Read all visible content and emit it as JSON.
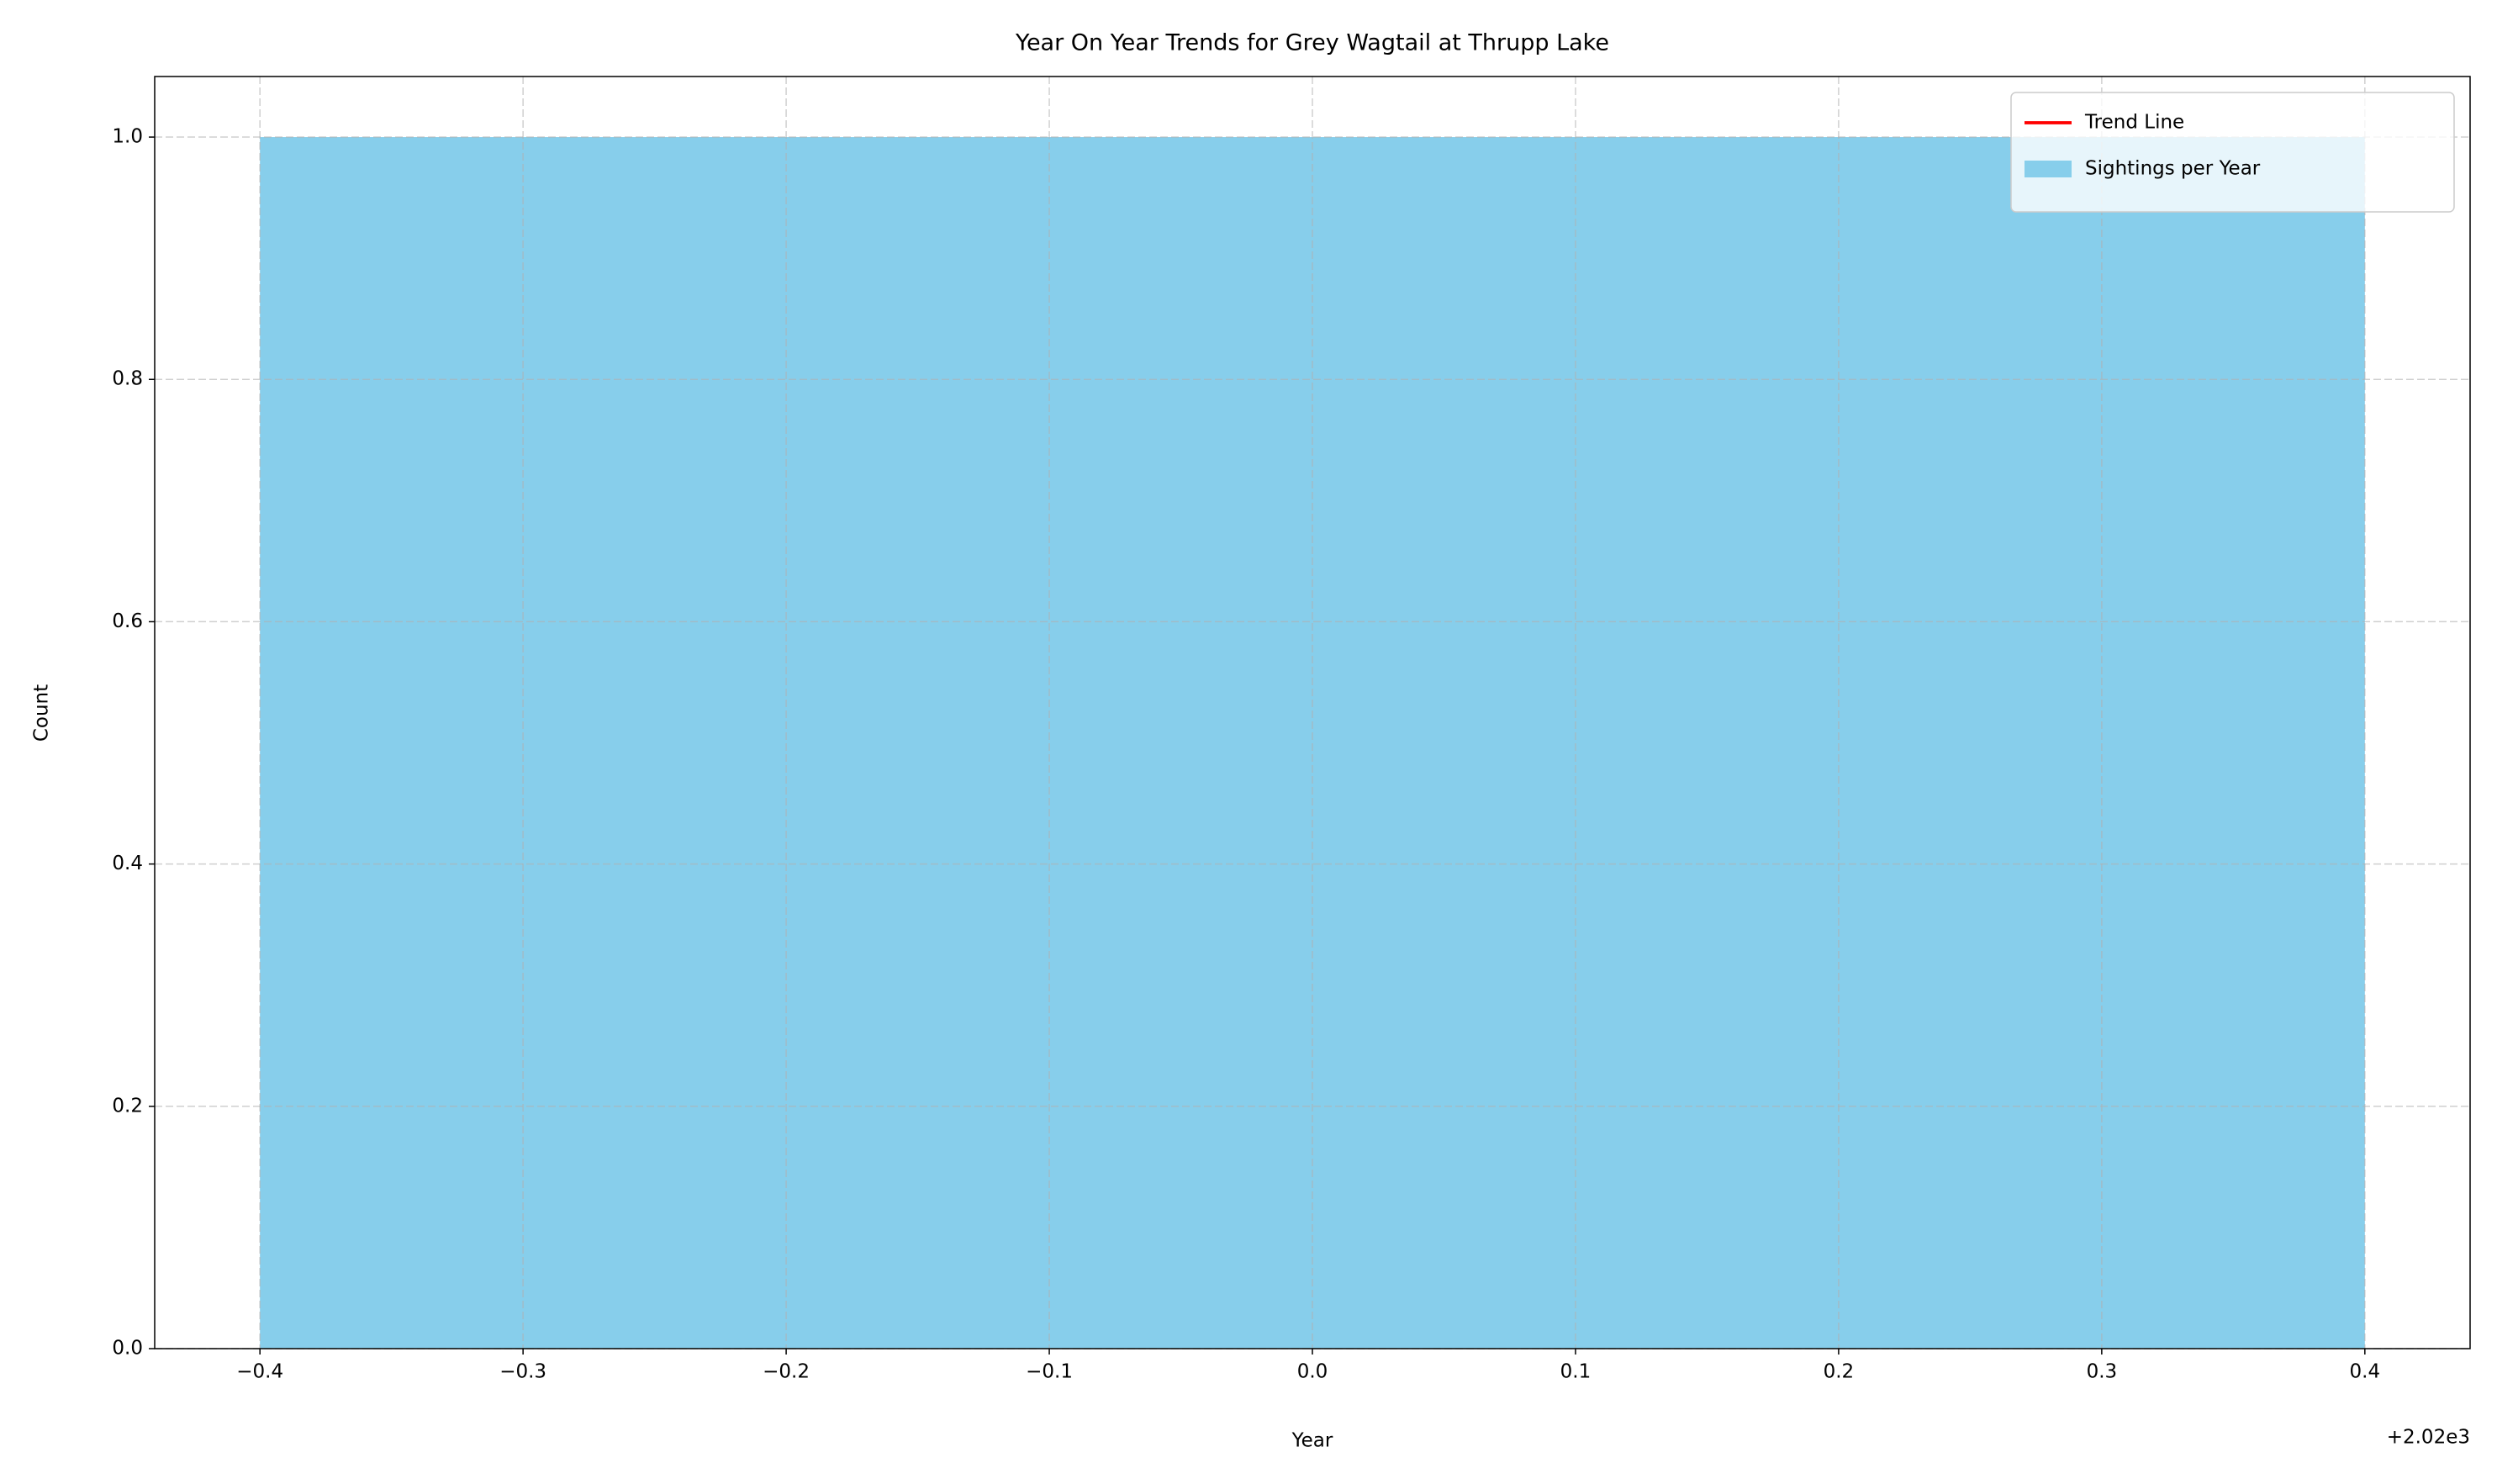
{
  "chart_data": {
    "type": "bar",
    "title": "Year On Year Trends for Grey Wagtail at Thrupp Lake",
    "x_label": "Year",
    "y_label": "Count",
    "x_offset_label": "+2.02e3",
    "series": [
      {
        "name": "Sightings per Year",
        "type": "bar",
        "color": "#87ceeb",
        "x": [
          2020
        ],
        "values": [
          1
        ],
        "bar_width": 0.8
      },
      {
        "name": "Trend Line",
        "type": "line",
        "color": "#ff0000",
        "x": [
          2020
        ],
        "values": [
          1
        ]
      }
    ],
    "xlim": [
      2019.56,
      2020.44
    ],
    "xticks": [
      {
        "value": 2019.6,
        "label": "−0.4"
      },
      {
        "value": 2019.7,
        "label": "−0.3"
      },
      {
        "value": 2019.8,
        "label": "−0.2"
      },
      {
        "value": 2019.9,
        "label": "−0.1"
      },
      {
        "value": 2020.0,
        "label": "0.0"
      },
      {
        "value": 2020.1,
        "label": "0.1"
      },
      {
        "value": 2020.2,
        "label": "0.2"
      },
      {
        "value": 2020.3,
        "label": "0.3"
      },
      {
        "value": 2020.4,
        "label": "0.4"
      }
    ],
    "ylim": [
      0,
      1.05
    ],
    "yticks": [
      {
        "value": 0,
        "label": "0.0"
      },
      0.2,
      0.4,
      0.6,
      0.8,
      {
        "value": 1,
        "label": "1.0"
      }
    ],
    "grid": true,
    "legend": "upper right"
  }
}
